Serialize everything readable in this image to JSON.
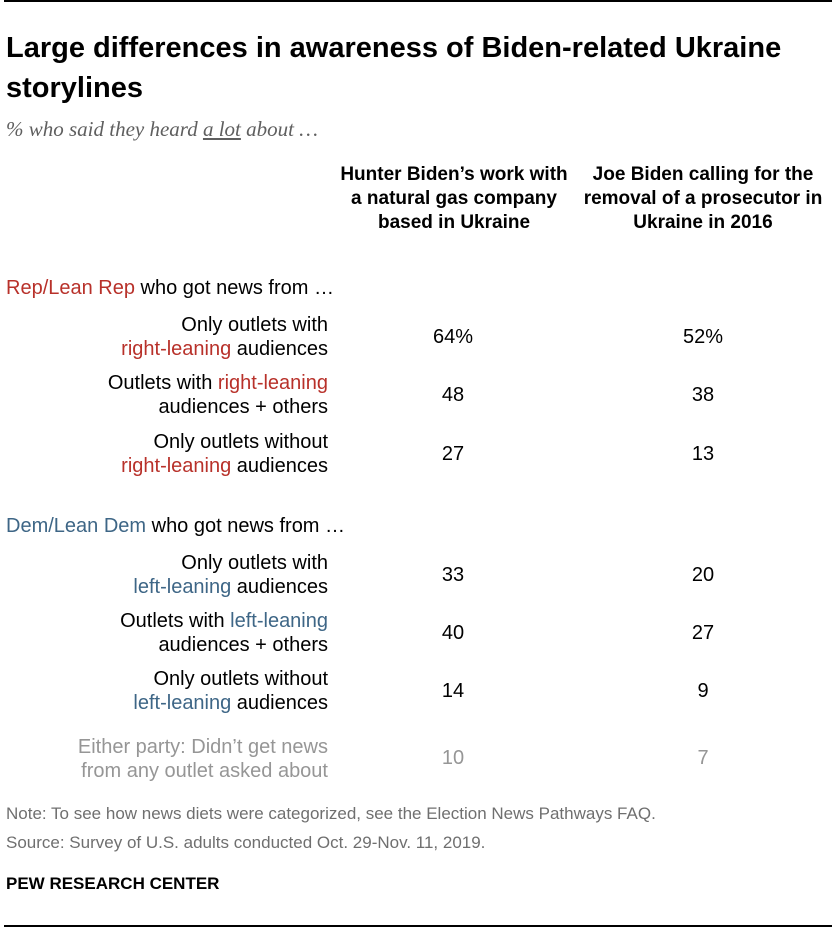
{
  "chart_data": {
    "type": "table",
    "title": "Large differences in awareness of Biden-related Ukraine storylines",
    "subtitle": {
      "before": "% who said they heard ",
      "emphasis": "a lot",
      "after": " about …"
    },
    "columns": [
      "Hunter Biden’s work with a natural gas company based in Ukraine",
      "Joe Biden calling for the removal of a prosecutor in Ukraine in 2016"
    ],
    "groups": [
      {
        "label_colored": "Rep/Lean Rep",
        "label_rest": " who got news from …",
        "color": "#b8312a",
        "rows": [
          {
            "label": "Only outlets with right-leaning audiences",
            "pre": "Only outlets with",
            "accent": "right-leaning",
            "post": " audiences",
            "values": [
              64,
              52
            ],
            "display": [
              "64%",
              "52%"
            ]
          },
          {
            "label": "Outlets with right-leaning audiences + others",
            "pre": "Outlets with ",
            "accent": "right-leaning",
            "post": "audiences + others",
            "values": [
              48,
              38
            ],
            "display": [
              "48",
              "38"
            ]
          },
          {
            "label": "Only outlets without right-leaning audiences",
            "pre": "Only outlets without",
            "accent": "right-leaning",
            "post": " audiences",
            "values": [
              27,
              13
            ],
            "display": [
              "27",
              "13"
            ]
          }
        ]
      },
      {
        "label_colored": "Dem/Lean Dem",
        "label_rest": " who got news from …",
        "color": "#3e6686",
        "rows": [
          {
            "label": "Only outlets with left-leaning audiences",
            "pre": "Only outlets with",
            "accent": "left-leaning",
            "post": " audiences",
            "values": [
              33,
              20
            ],
            "display": [
              "33",
              "20"
            ]
          },
          {
            "label": "Outlets with left-leaning audiences + others",
            "pre": "Outlets with ",
            "accent": "left-leaning",
            "post": "audiences + others",
            "values": [
              40,
              27
            ],
            "display": [
              "40",
              "27"
            ]
          },
          {
            "label": "Only outlets without left-leaning audiences",
            "pre": "Only outlets without",
            "accent": "left-leaning",
            "post": " audiences",
            "values": [
              14,
              9
            ],
            "display": [
              "14",
              "9"
            ]
          }
        ]
      }
    ],
    "other_row": {
      "line1": "Either party: Didn’t get news",
      "line2": "from any outlet asked about",
      "values": [
        10,
        7
      ],
      "display": [
        "10",
        "7"
      ]
    }
  },
  "notes": {
    "note": "Note: To see how news diets were categorized, see the Election News Pathways FAQ.",
    "source": "Source: Survey of U.S. adults conducted Oct. 29-Nov. 11, 2019."
  },
  "brand": "PEW RESEARCH CENTER"
}
